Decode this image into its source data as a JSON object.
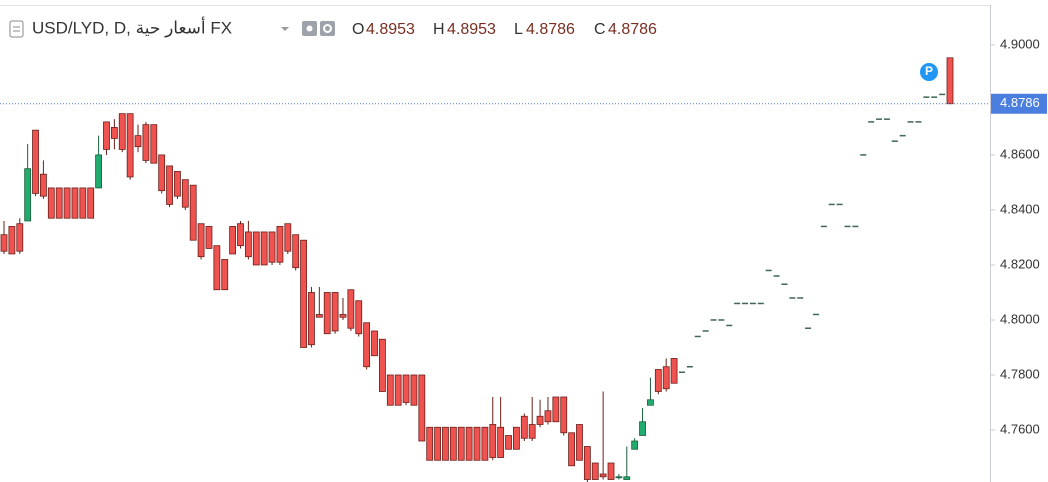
{
  "chart_data": {
    "type": "candlestick",
    "symbol": "USD/LYD, D, أسعار حية FX",
    "ohlc_readout": [
      {
        "label": "O",
        "value": 4.8953
      },
      {
        "label": "H",
        "value": 4.8953
      },
      {
        "label": "L",
        "value": 4.8786
      },
      {
        "label": "C",
        "value": 4.8786
      }
    ],
    "annotation": "P",
    "last_price": 4.8786,
    "ylim": [
      4.7411,
      4.9145
    ],
    "yticks": [
      {
        "value": 4.9,
        "label": "4.9000"
      },
      {
        "value": 4.86,
        "label": "4.8600"
      },
      {
        "value": 4.84,
        "label": "4.8400"
      },
      {
        "value": 4.82,
        "label": "4.8200"
      },
      {
        "value": 4.8,
        "label": "4.8000"
      },
      {
        "value": 4.78,
        "label": "4.7800"
      },
      {
        "value": 4.76,
        "label": "4.7600"
      }
    ],
    "up_color": "#22ab6e",
    "down_color": "#ef5350",
    "flat_color": "#3f6656",
    "price_line_color": "#4a7fe0",
    "series": [
      {
        "name": "USD/LYD",
        "open": [
          4.831,
          4.834,
          4.835,
          4.836,
          4.869,
          4.853,
          4.848,
          4.848,
          4.848,
          4.848,
          4.848,
          4.848,
          4.848,
          4.872,
          4.87,
          4.875,
          4.875,
          4.867,
          4.871,
          4.871,
          4.86,
          4.856,
          4.854,
          4.851,
          4.849,
          4.835,
          4.834,
          4.827,
          4.822,
          4.834,
          4.835,
          4.832,
          4.832,
          4.832,
          4.832,
          4.834,
          4.835,
          4.831,
          4.829,
          4.81,
          4.802,
          4.81,
          4.81,
          4.802,
          4.811,
          4.807,
          4.799,
          4.796,
          4.793,
          4.78,
          4.78,
          4.78,
          4.78,
          4.78,
          4.761,
          4.761,
          4.761,
          4.761,
          4.761,
          4.761,
          4.761,
          4.761,
          4.762,
          4.761,
          4.758,
          4.761,
          4.765,
          4.762,
          4.765,
          4.767,
          4.772,
          4.772,
          4.759,
          4.762,
          4.754,
          4.748,
          4.744,
          4.748,
          4.743,
          4.742,
          4.753,
          4.758,
          4.769,
          4.782,
          4.783,
          4.786,
          4.781,
          4.783,
          4.794,
          4.796,
          4.8,
          4.8,
          4.798,
          4.806,
          4.806,
          4.806,
          4.806,
          4.818,
          4.816,
          4.813,
          4.808,
          4.808,
          4.797,
          4.802,
          4.834,
          4.842,
          4.842,
          4.834,
          4.834,
          4.86,
          4.872,
          4.873,
          4.873,
          4.865,
          4.867,
          4.872,
          4.872,
          4.881,
          4.881,
          4.882,
          4.8953
        ],
        "high": [
          4.836,
          4.834,
          4.837,
          4.864,
          4.869,
          4.858,
          4.848,
          4.848,
          4.848,
          4.848,
          4.848,
          4.848,
          4.867,
          4.872,
          4.873,
          4.875,
          4.875,
          4.871,
          4.872,
          4.871,
          4.86,
          4.856,
          4.854,
          4.851,
          4.849,
          4.835,
          4.834,
          4.827,
          4.822,
          4.834,
          4.836,
          4.836,
          4.832,
          4.832,
          4.832,
          4.834,
          4.835,
          4.831,
          4.829,
          4.812,
          4.812,
          4.81,
          4.81,
          4.808,
          4.811,
          4.807,
          4.799,
          4.796,
          4.793,
          4.78,
          4.78,
          4.78,
          4.78,
          4.78,
          4.761,
          4.761,
          4.761,
          4.761,
          4.761,
          4.761,
          4.761,
          4.761,
          4.772,
          4.772,
          4.758,
          4.761,
          4.766,
          4.772,
          4.771,
          4.772,
          4.772,
          4.772,
          4.759,
          4.762,
          4.754,
          4.748,
          4.774,
          4.748,
          4.744,
          4.754,
          4.757,
          4.768,
          4.779,
          4.782,
          4.786,
          4.786,
          4.781,
          4.783,
          4.794,
          4.796,
          4.8,
          4.8,
          4.798,
          4.806,
          4.806,
          4.806,
          4.806,
          4.818,
          4.816,
          4.813,
          4.808,
          4.808,
          4.797,
          4.802,
          4.834,
          4.842,
          4.842,
          4.834,
          4.834,
          4.86,
          4.872,
          4.873,
          4.873,
          4.865,
          4.867,
          4.872,
          4.872,
          4.881,
          4.881,
          4.882,
          4.8953
        ],
        "low": [
          4.824,
          4.824,
          4.824,
          4.836,
          4.845,
          4.844,
          4.837,
          4.837,
          4.837,
          4.837,
          4.837,
          4.837,
          4.848,
          4.86,
          4.862,
          4.861,
          4.851,
          4.861,
          4.857,
          4.857,
          4.846,
          4.841,
          4.844,
          4.84,
          4.829,
          4.822,
          4.826,
          4.811,
          4.811,
          4.824,
          4.826,
          4.822,
          4.82,
          4.82,
          4.82,
          4.82,
          4.824,
          4.818,
          4.79,
          4.79,
          4.801,
          4.795,
          4.795,
          4.8,
          4.796,
          4.794,
          4.782,
          4.787,
          4.774,
          4.769,
          4.769,
          4.769,
          4.769,
          4.756,
          4.749,
          4.749,
          4.749,
          4.749,
          4.749,
          4.749,
          4.749,
          4.749,
          4.749,
          4.75,
          4.753,
          4.753,
          4.756,
          4.756,
          4.761,
          4.762,
          4.763,
          4.758,
          4.747,
          4.749,
          4.741,
          4.742,
          4.742,
          4.742,
          4.742,
          4.742,
          4.753,
          4.758,
          4.769,
          4.773,
          4.774,
          4.777,
          4.781,
          4.783,
          4.794,
          4.796,
          4.8,
          4.8,
          4.798,
          4.806,
          4.806,
          4.806,
          4.806,
          4.818,
          4.816,
          4.813,
          4.808,
          4.808,
          4.797,
          4.802,
          4.834,
          4.842,
          4.842,
          4.834,
          4.834,
          4.86,
          4.872,
          4.873,
          4.873,
          4.865,
          4.867,
          4.872,
          4.872,
          4.881,
          4.881,
          4.882,
          4.8786
        ],
        "close": [
          4.825,
          4.824,
          4.825,
          4.855,
          4.846,
          4.845,
          4.837,
          4.837,
          4.837,
          4.837,
          4.837,
          4.837,
          4.86,
          4.862,
          4.866,
          4.862,
          4.852,
          4.863,
          4.858,
          4.857,
          4.847,
          4.842,
          4.845,
          4.841,
          4.829,
          4.823,
          4.826,
          4.811,
          4.811,
          4.824,
          4.827,
          4.823,
          4.82,
          4.82,
          4.821,
          4.821,
          4.825,
          4.819,
          4.79,
          4.791,
          4.801,
          4.795,
          4.796,
          4.801,
          4.797,
          4.795,
          4.783,
          4.787,
          4.774,
          4.769,
          4.769,
          4.77,
          4.769,
          4.756,
          4.749,
          4.749,
          4.749,
          4.749,
          4.749,
          4.749,
          4.749,
          4.749,
          4.75,
          4.75,
          4.753,
          4.753,
          4.757,
          4.757,
          4.762,
          4.763,
          4.763,
          4.759,
          4.747,
          4.749,
          4.742,
          4.742,
          4.743,
          4.742,
          4.743,
          4.743,
          4.756,
          4.763,
          4.771,
          4.774,
          4.775,
          4.777,
          4.781,
          4.783,
          4.794,
          4.796,
          4.8,
          4.8,
          4.798,
          4.806,
          4.806,
          4.806,
          4.806,
          4.818,
          4.816,
          4.813,
          4.808,
          4.808,
          4.797,
          4.802,
          4.834,
          4.842,
          4.842,
          4.834,
          4.834,
          4.86,
          4.872,
          4.873,
          4.873,
          4.865,
          4.867,
          4.872,
          4.872,
          4.881,
          4.881,
          4.882,
          4.8786
        ]
      }
    ]
  }
}
